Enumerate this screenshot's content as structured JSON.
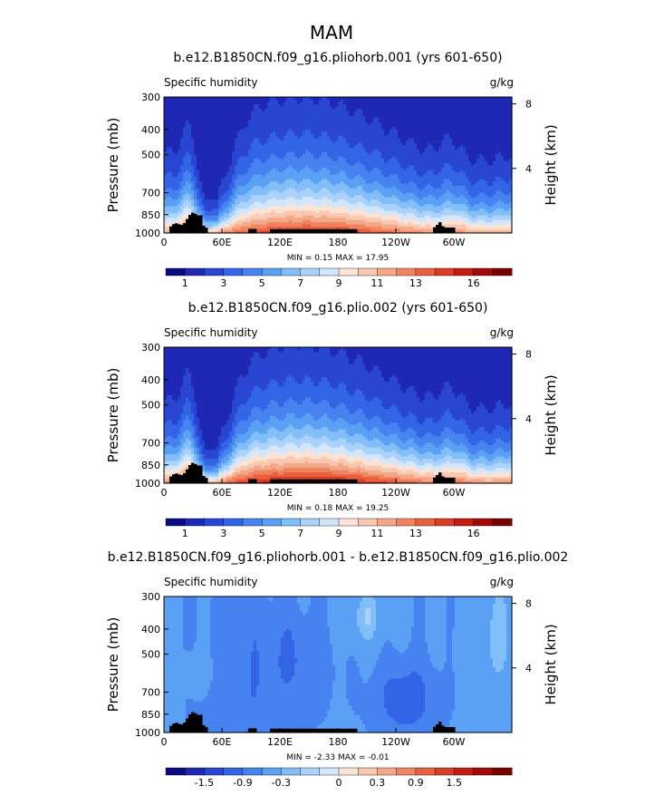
{
  "figure_title": "MAM",
  "colors": {
    "humidity_palette": [
      "#0a0a82",
      "#1e28b4",
      "#2846d2",
      "#3264e6",
      "#4682f0",
      "#5aa0f5",
      "#82bef8",
      "#aad2fa",
      "#d2e6fc",
      "#fbe4d6",
      "#f8c8b0",
      "#f4a888",
      "#f08462",
      "#e8603e",
      "#d83c24",
      "#c41c12",
      "#a00a0a",
      "#780000"
    ],
    "diff_palette": [
      "#0a0a82",
      "#1e28b4",
      "#2846d2",
      "#3264e6",
      "#4682f0",
      "#5aa0f5",
      "#82bef8",
      "#aad2fa",
      "#d2e6fc",
      "#fbe4d6",
      "#f8c8b0",
      "#f4a888",
      "#f08462",
      "#e8603e",
      "#d83c24",
      "#c41c12",
      "#a00a0a",
      "#780000"
    ],
    "terrain": "#000000"
  },
  "chart_data": [
    {
      "type": "heatmap",
      "title": "b.e12.B1850CN.f09_g16.pliohorb.001 (yrs 601-650)",
      "left_label": "Specific humidity",
      "right_label": "g/kg",
      "ylabel": "Pressure (mb)",
      "ylabel_right": "Height (km)",
      "x_ticks": [
        "0",
        "60E",
        "120E",
        "180",
        "120W",
        "60W"
      ],
      "x_tick_values": [
        0,
        60,
        120,
        180,
        240,
        300
      ],
      "xlim": [
        0,
        360
      ],
      "y_ticks": [
        "300",
        "400",
        "500",
        "700",
        "850",
        "1000"
      ],
      "y_tick_values": [
        300,
        400,
        500,
        700,
        850,
        1000
      ],
      "ylim": [
        1000,
        300
      ],
      "right_ticks": [
        "8",
        "4"
      ],
      "right_tick_values": [
        8,
        4
      ],
      "stats": "MIN =    0.15   MAX =   17.95",
      "min": 0.15,
      "max": 17.95,
      "colorbar_labels": [
        "1",
        "3",
        "5",
        "7",
        "9",
        "11",
        "13",
        "16"
      ],
      "field": "abs",
      "surface_scale": 1.0
    },
    {
      "type": "heatmap",
      "title": "b.e12.B1850CN.f09_g16.plio.002 (yrs 601-650)",
      "left_label": "Specific humidity",
      "right_label": "g/kg",
      "ylabel": "Pressure (mb)",
      "ylabel_right": "Height (km)",
      "x_ticks": [
        "0",
        "60E",
        "120E",
        "180",
        "120W",
        "60W"
      ],
      "x_tick_values": [
        0,
        60,
        120,
        180,
        240,
        300
      ],
      "xlim": [
        0,
        360
      ],
      "y_ticks": [
        "300",
        "400",
        "500",
        "700",
        "850",
        "1000"
      ],
      "y_tick_values": [
        300,
        400,
        500,
        700,
        850,
        1000
      ],
      "ylim": [
        1000,
        300
      ],
      "right_ticks": [
        "8",
        "4"
      ],
      "right_tick_values": [
        8,
        4
      ],
      "stats": "MIN =    0.18   MAX =   19.25",
      "min": 0.18,
      "max": 19.25,
      "colorbar_labels": [
        "1",
        "3",
        "5",
        "7",
        "9",
        "11",
        "13",
        "16"
      ],
      "field": "abs",
      "surface_scale": 1.07
    },
    {
      "type": "heatmap",
      "title": "b.e12.B1850CN.f09_g16.pliohorb.001 - b.e12.B1850CN.f09_g16.plio.002",
      "left_label": "Specific humidity",
      "right_label": "g/kg",
      "ylabel": "Pressure (mb)",
      "ylabel_right": "Height (km)",
      "x_ticks": [
        "0",
        "60E",
        "120E",
        "180",
        "120W",
        "60W"
      ],
      "x_tick_values": [
        0,
        60,
        120,
        180,
        240,
        300
      ],
      "xlim": [
        0,
        360
      ],
      "y_ticks": [
        "300",
        "400",
        "500",
        "700",
        "850",
        "1000"
      ],
      "y_tick_values": [
        300,
        400,
        500,
        700,
        850,
        1000
      ],
      "ylim": [
        1000,
        300
      ],
      "right_ticks": [
        "8",
        "4"
      ],
      "right_tick_values": [
        8,
        4
      ],
      "stats": "MIN =   -2.33   MAX =   -0.01",
      "min": -2.33,
      "max": -0.01,
      "colorbar_labels": [
        "-1.5",
        "-0.9",
        "-0.3",
        "0",
        "0.3",
        "0.9",
        "1.5"
      ],
      "field": "diff",
      "surface_scale": 1.0
    }
  ]
}
